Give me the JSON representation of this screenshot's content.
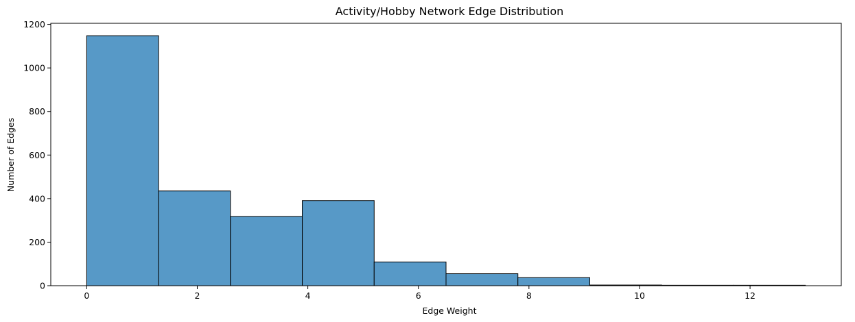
{
  "chart_data": {
    "type": "bar",
    "title": "Activity/Hobby Network Edge Distribution",
    "xlabel": "Edge Weight",
    "ylabel": "Number of Edges",
    "bins": [
      {
        "start": 0.0,
        "end": 1.3,
        "count": 1148
      },
      {
        "start": 1.3,
        "end": 2.6,
        "count": 435
      },
      {
        "start": 2.6,
        "end": 3.9,
        "count": 318
      },
      {
        "start": 3.9,
        "end": 5.2,
        "count": 391
      },
      {
        "start": 5.2,
        "end": 6.5,
        "count": 109
      },
      {
        "start": 6.5,
        "end": 7.8,
        "count": 55
      },
      {
        "start": 7.8,
        "end": 9.1,
        "count": 37
      },
      {
        "start": 9.1,
        "end": 10.4,
        "count": 3
      },
      {
        "start": 10.4,
        "end": 11.7,
        "count": 2
      },
      {
        "start": 11.7,
        "end": 13.0,
        "count": 2
      }
    ],
    "xlim": [
      -0.65,
      13.65
    ],
    "ylim": [
      0,
      1205
    ],
    "x_ticks": [
      0,
      2,
      4,
      6,
      8,
      10,
      12
    ],
    "y_ticks": [
      0,
      200,
      400,
      600,
      800,
      1000,
      1200
    ],
    "bar_color": "#5799c7",
    "edge_color": "#000000",
    "grid": false,
    "legend": "none"
  }
}
